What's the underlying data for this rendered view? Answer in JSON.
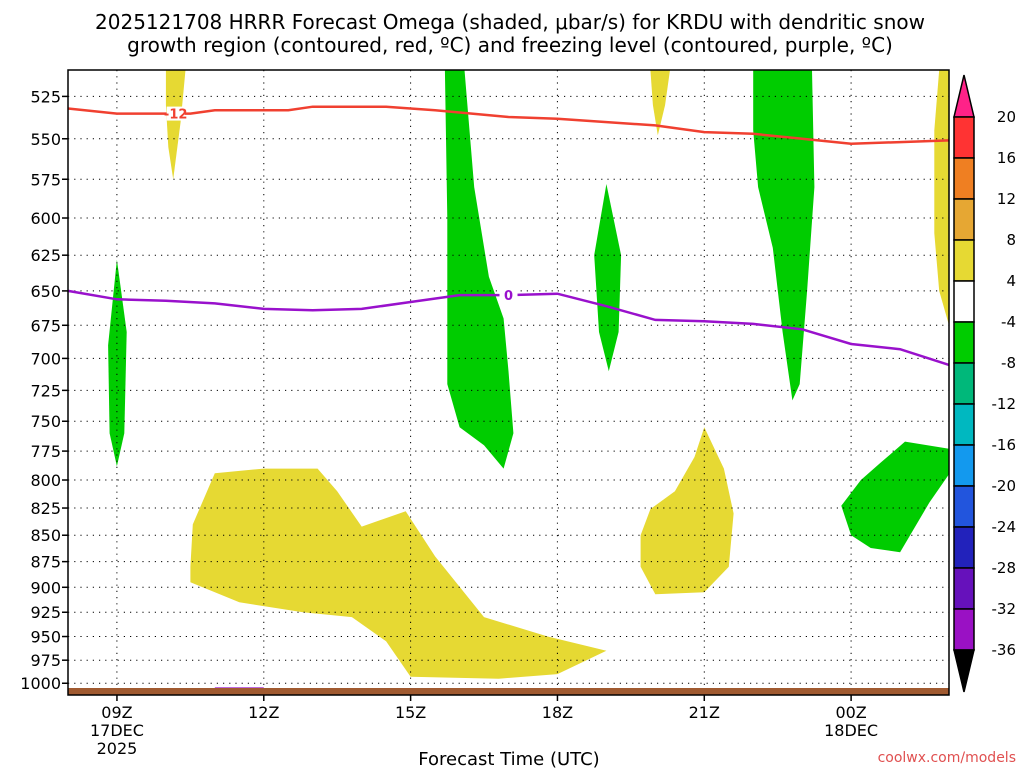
{
  "title": {
    "line1": "2025121708 HRRR Forecast Omega (shaded, μbar/s) for KRDU with dendritic snow",
    "line2": "growth region (contoured, red, ºC) and freezing level (contoured, purple, ºC)"
  },
  "xlabel": "Forecast Time (UTC)",
  "credit": "coolwx.com/models",
  "colors": {
    "yellow": "#e6d933",
    "green": "#00cc00",
    "red_contour": "#f04030",
    "purple_contour": "#9911cc",
    "ground": "#a05a30"
  },
  "chart_data": {
    "type": "heatmap",
    "title": "2025121708 HRRR Forecast Omega (shaded, μbar/s) for KRDU with dendritic snow growth region (contoured, red, ºC) and freezing level (contoured, purple, ºC)",
    "xlabel": "Forecast Time (UTC)",
    "ylabel": "",
    "x_ticks": [
      {
        "hours": 9,
        "label": "09Z",
        "sub1": "17DEC",
        "sub2": "2025"
      },
      {
        "hours": 12,
        "label": "12Z",
        "sub1": "",
        "sub2": ""
      },
      {
        "hours": 15,
        "label": "15Z",
        "sub1": "",
        "sub2": ""
      },
      {
        "hours": 18,
        "label": "18Z",
        "sub1": "",
        "sub2": ""
      },
      {
        "hours": 21,
        "label": "21Z",
        "sub1": "",
        "sub2": ""
      },
      {
        "hours": 24,
        "label": "00Z",
        "sub1": "18DEC",
        "sub2": ""
      }
    ],
    "x_range_hours": [
      8,
      26
    ],
    "y_ticks": [
      525,
      550,
      575,
      600,
      625,
      650,
      675,
      700,
      725,
      750,
      775,
      800,
      825,
      850,
      875,
      900,
      925,
      950,
      975,
      1000
    ],
    "y_scale": "log-pressure",
    "y_range_mb": [
      1013,
      510
    ],
    "grid": "dotted",
    "colorbar": {
      "labels": [
        "20",
        "16",
        "12",
        "8",
        "4",
        "-4",
        "-8",
        "-12",
        "-16",
        "-20",
        "-24",
        "-28",
        "-32",
        "-36"
      ],
      "bins": [
        "#ff2288",
        "#ff3333",
        "#ef7f22",
        "#e6a733",
        "#e6d933",
        "#ffffff",
        "#00cc00",
        "#00b87a",
        "#00b8c0",
        "#1399ee",
        "#2255dd",
        "#2222bb",
        "#6611bb",
        "#9a11c4",
        "#aaaaaa",
        "#000000"
      ]
    },
    "omega_regions": [
      {
        "name": "rising motion, -4 to -8",
        "color": "green",
        "points": [
          [
            9.0,
            628
          ],
          [
            9.2,
            680
          ],
          [
            9.15,
            760
          ],
          [
            9.0,
            788
          ],
          [
            8.85,
            760
          ],
          [
            8.82,
            690
          ],
          [
            9.0,
            628
          ]
        ]
      },
      {
        "name": "sinking motion, 4 to 8",
        "color": "yellow",
        "points": [
          [
            10.0,
            510
          ],
          [
            10.4,
            510
          ],
          [
            10.3,
            540
          ],
          [
            10.15,
            575
          ],
          [
            10.05,
            555
          ],
          [
            10.0,
            530
          ],
          [
            10.0,
            510
          ]
        ]
      },
      {
        "name": "rising motion, -4 to -8",
        "color": "green",
        "points": [
          [
            15.7,
            510
          ],
          [
            16.1,
            510
          ],
          [
            16.3,
            580
          ],
          [
            16.6,
            640
          ],
          [
            16.9,
            670
          ],
          [
            17.0,
            710
          ],
          [
            17.1,
            760
          ],
          [
            16.9,
            790
          ],
          [
            16.5,
            770
          ],
          [
            16.0,
            755
          ],
          [
            15.75,
            720
          ],
          [
            15.75,
            600
          ],
          [
            15.7,
            510
          ]
        ]
      },
      {
        "name": "rising motion, -4 to -8",
        "color": "green",
        "points": [
          [
            19.0,
            578
          ],
          [
            19.3,
            625
          ],
          [
            19.25,
            680
          ],
          [
            19.05,
            710
          ],
          [
            18.85,
            680
          ],
          [
            18.75,
            625
          ],
          [
            19.0,
            578
          ]
        ]
      },
      {
        "name": "sinking motion, 4 to 8",
        "color": "yellow",
        "points": [
          [
            19.9,
            510
          ],
          [
            20.3,
            510
          ],
          [
            20.2,
            530
          ],
          [
            20.05,
            548
          ],
          [
            19.95,
            530
          ],
          [
            19.9,
            510
          ]
        ]
      },
      {
        "name": "rising motion, -4 to -8",
        "color": "green",
        "points": [
          [
            22.0,
            510
          ],
          [
            23.2,
            510
          ],
          [
            23.25,
            580
          ],
          [
            23.1,
            650
          ],
          [
            22.95,
            720
          ],
          [
            22.8,
            733
          ],
          [
            22.6,
            680
          ],
          [
            22.4,
            620
          ],
          [
            22.1,
            580
          ],
          [
            22.0,
            545
          ],
          [
            22.0,
            510
          ]
        ]
      },
      {
        "name": "sinking motion, 4 to 8",
        "color": "yellow",
        "points": [
          [
            25.8,
            510
          ],
          [
            26.0,
            510
          ],
          [
            26.0,
            675
          ],
          [
            25.8,
            650
          ],
          [
            25.7,
            610
          ],
          [
            25.7,
            545
          ],
          [
            25.8,
            510
          ]
        ]
      },
      {
        "name": "sinking motion, 4 to 8",
        "color": "yellow",
        "points": [
          [
            11.0,
            794
          ],
          [
            12.0,
            790
          ],
          [
            13.1,
            790
          ],
          [
            13.5,
            810
          ],
          [
            14.0,
            842
          ],
          [
            14.9,
            828
          ],
          [
            15.5,
            870
          ],
          [
            16.5,
            930
          ],
          [
            17.8,
            950
          ],
          [
            19.0,
            965
          ],
          [
            18.0,
            990
          ],
          [
            16.8,
            995
          ],
          [
            15.0,
            993
          ],
          [
            14.5,
            955
          ],
          [
            13.8,
            930
          ],
          [
            12.8,
            925
          ],
          [
            11.5,
            915
          ],
          [
            10.5,
            895
          ],
          [
            10.5,
            880
          ],
          [
            10.55,
            840
          ],
          [
            11.0,
            794
          ]
        ]
      },
      {
        "name": "sinking motion, 4 to 8",
        "color": "yellow",
        "points": [
          [
            21.0,
            755
          ],
          [
            21.4,
            790
          ],
          [
            21.6,
            830
          ],
          [
            21.5,
            880
          ],
          [
            21.0,
            905
          ],
          [
            20.0,
            907
          ],
          [
            19.7,
            880
          ],
          [
            19.7,
            850
          ],
          [
            19.9,
            826
          ],
          [
            20.4,
            810
          ],
          [
            20.8,
            780
          ],
          [
            21.0,
            755
          ]
        ]
      },
      {
        "name": "rising motion, -4 to -8",
        "color": "green",
        "points": [
          [
            25.1,
            767
          ],
          [
            26.0,
            773
          ],
          [
            26.0,
            795
          ],
          [
            25.6,
            820
          ],
          [
            25.0,
            866
          ],
          [
            24.4,
            862
          ],
          [
            24.0,
            850
          ],
          [
            23.8,
            823
          ],
          [
            24.2,
            800
          ],
          [
            24.6,
            785
          ],
          [
            25.1,
            767
          ]
        ]
      }
    ],
    "dendritic_contour": {
      "label": "-12",
      "label_hours": 10.2,
      "points": [
        [
          8,
          532
        ],
        [
          9,
          535
        ],
        [
          10.5,
          535
        ],
        [
          11,
          533
        ],
        [
          12.5,
          533
        ],
        [
          13,
          531
        ],
        [
          14.5,
          531
        ],
        [
          15.5,
          533
        ],
        [
          17,
          537
        ],
        [
          18,
          538
        ],
        [
          20,
          542
        ],
        [
          21,
          546
        ],
        [
          22,
          547
        ],
        [
          23,
          550
        ],
        [
          24,
          553
        ],
        [
          25,
          552
        ],
        [
          26,
          551
        ]
      ]
    },
    "freezing_contour": {
      "label": "0",
      "label_hours": 17.0,
      "points": [
        [
          8,
          650
        ],
        [
          9,
          656
        ],
        [
          10,
          657
        ],
        [
          11,
          659
        ],
        [
          12,
          663
        ],
        [
          13,
          664
        ],
        [
          14,
          663
        ],
        [
          15,
          658
        ],
        [
          16,
          653
        ],
        [
          17,
          653
        ],
        [
          18,
          652
        ],
        [
          19,
          661
        ],
        [
          20,
          671
        ],
        [
          21,
          672
        ],
        [
          22,
          674
        ],
        [
          23,
          678
        ],
        [
          24,
          689
        ],
        [
          25,
          693
        ],
        [
          26,
          705
        ]
      ]
    },
    "small_purple_segment": {
      "points": [
        [
          11.0,
          1006
        ],
        [
          12.0,
          1006
        ]
      ]
    }
  }
}
